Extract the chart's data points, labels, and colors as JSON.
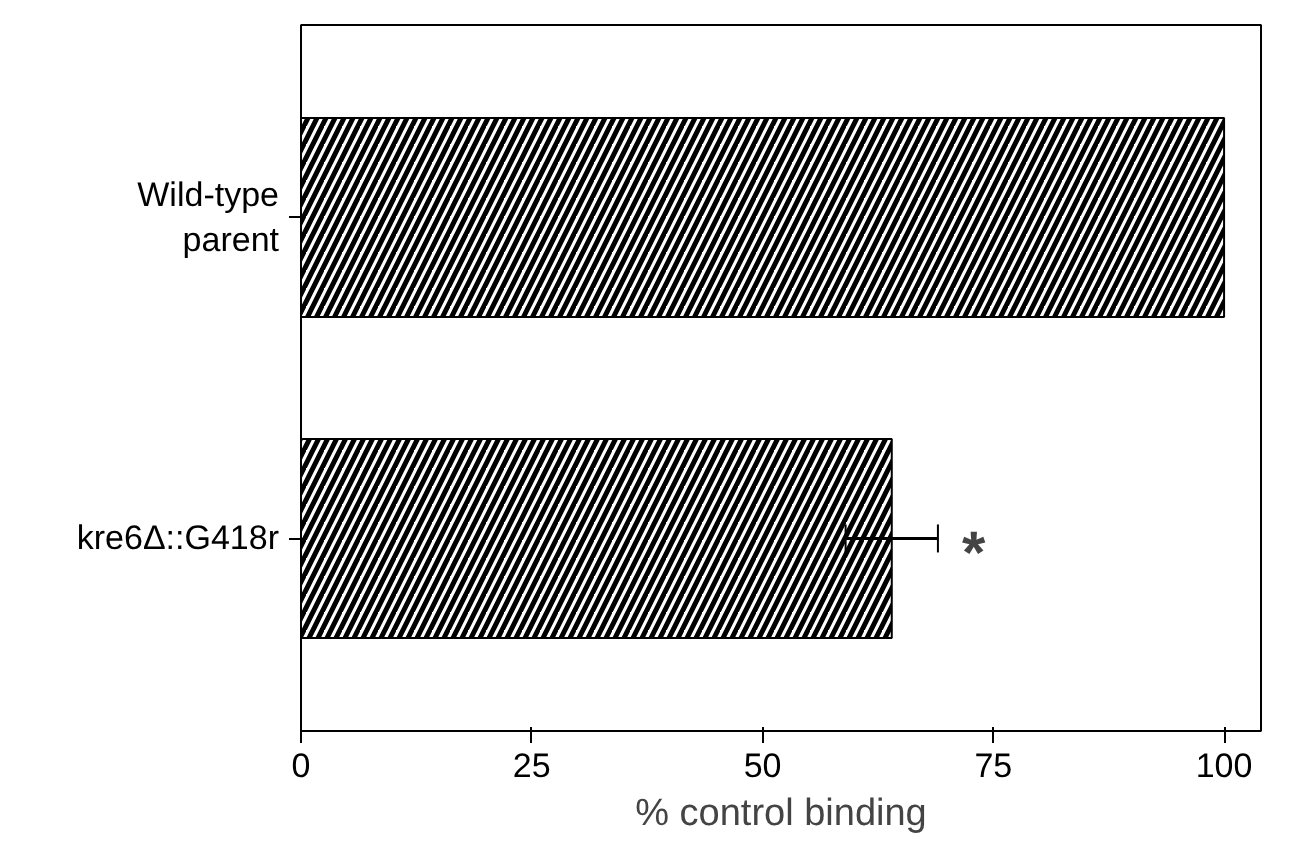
{
  "chart_data": {
    "type": "bar",
    "orientation": "horizontal",
    "xlabel": "% control binding",
    "categories": [
      "Wild-type\nparent",
      "kre6Δ::G418r"
    ],
    "values": [
      100,
      64
    ],
    "errors": [
      null,
      [
        59,
        69
      ]
    ],
    "color": "#000000",
    "xlim": [
      0,
      104
    ],
    "xticks": [
      0,
      25,
      50,
      75,
      100
    ],
    "grid": false,
    "annotations": [
      "*"
    ]
  }
}
